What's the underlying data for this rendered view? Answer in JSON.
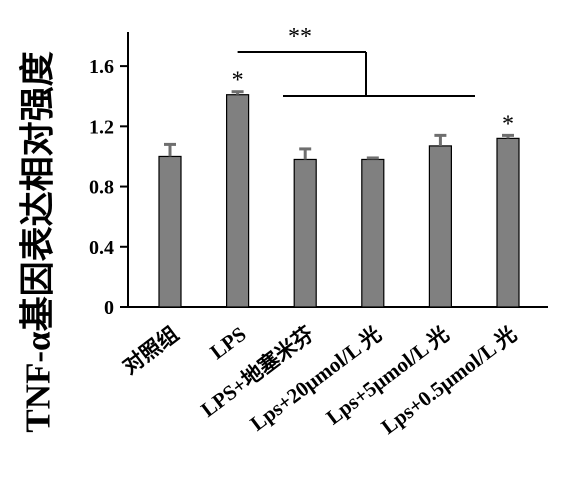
{
  "chart_data": {
    "type": "bar",
    "title": "",
    "xlabel": "",
    "ylabel": "TNF-α基因表达相对强度",
    "categories": [
      "对照组",
      "LPS",
      "LPS+地塞米芬",
      "Lps+20μmol/L 光",
      "Lps+5μmol/L 光",
      "Lps+0.5μmol/L 光"
    ],
    "values": [
      1.0,
      1.41,
      0.98,
      0.98,
      1.07,
      1.12
    ],
    "errors": [
      0.08,
      0.02,
      0.07,
      0.01,
      0.07,
      0.02
    ],
    "ylim": [
      0,
      1.8
    ],
    "yticks": [
      "0",
      "0.4",
      "0.8",
      "1.2",
      "1.6"
    ],
    "bar_color": "#808080",
    "annotations": {
      "significance_markers": [
        "",
        "*",
        "",
        "",
        "",
        "*"
      ],
      "bracket_label": "**"
    },
    "grid": false
  }
}
